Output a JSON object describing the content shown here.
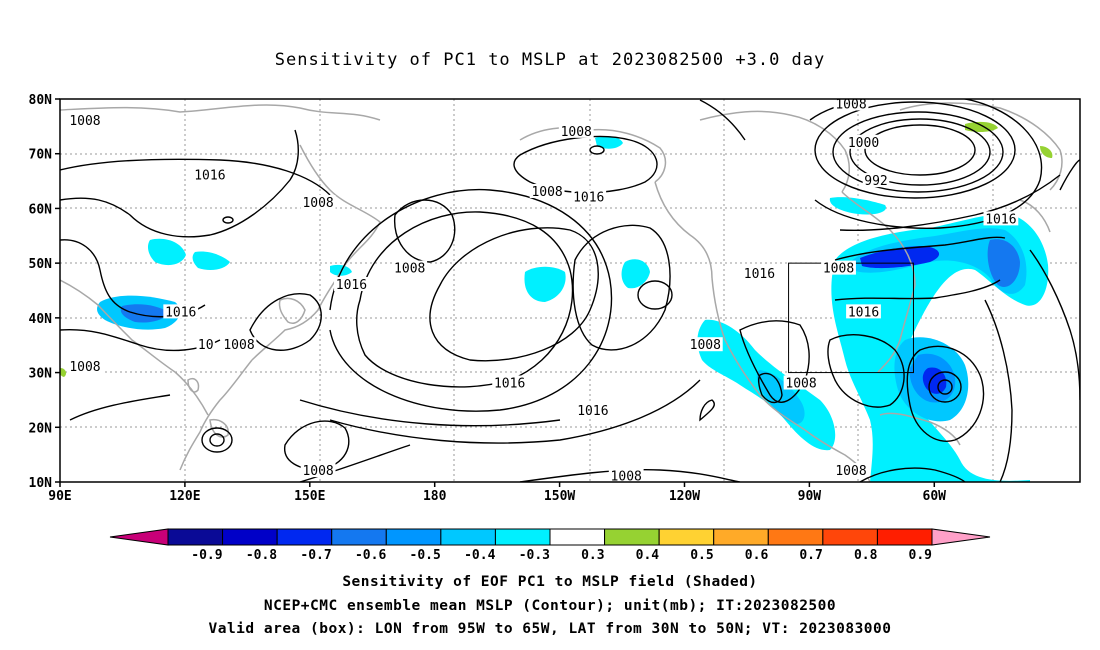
{
  "title": "Sensitivity of PC1 to MSLP at 2023082500 +3.0 day",
  "map": {
    "lon_range": [
      90,
      335
    ],
    "lat_range": [
      10,
      80
    ],
    "lat_ticks": [
      {
        "value": 80,
        "label": "80N"
      },
      {
        "value": 70,
        "label": "70N"
      },
      {
        "value": 60,
        "label": "60N"
      },
      {
        "value": 50,
        "label": "50N"
      },
      {
        "value": 40,
        "label": "40N"
      },
      {
        "value": 30,
        "label": "30N"
      },
      {
        "value": 20,
        "label": "20N"
      },
      {
        "value": 10,
        "label": "10N"
      }
    ],
    "lon_ticks": [
      {
        "value": 90,
        "label": "90E"
      },
      {
        "value": 120,
        "label": "120E"
      },
      {
        "value": 150,
        "label": "150E"
      },
      {
        "value": 180,
        "label": "180"
      },
      {
        "value": 210,
        "label": "150W"
      },
      {
        "value": 240,
        "label": "120W"
      },
      {
        "value": 270,
        "label": "90W"
      },
      {
        "value": 300,
        "label": "60W"
      }
    ],
    "valid_box": {
      "lon": [
        265,
        295
      ],
      "lat": [
        30,
        50
      ]
    },
    "contour_labels": [
      {
        "text": "1008",
        "lon": 96,
        "lat": 76
      },
      {
        "text": "1016",
        "lon": 126,
        "lat": 66
      },
      {
        "text": "1008",
        "lon": 152,
        "lat": 61
      },
      {
        "text": "1008",
        "lon": 214,
        "lat": 74
      },
      {
        "text": "1008",
        "lon": 207,
        "lat": 63
      },
      {
        "text": "1016",
        "lon": 217,
        "lat": 62
      },
      {
        "text": "1008",
        "lon": 174,
        "lat": 49
      },
      {
        "text": "1016",
        "lon": 160,
        "lat": 46
      },
      {
        "text": "1016",
        "lon": 119,
        "lat": 41
      },
      {
        "text": "1008",
        "lon": 133,
        "lat": 35
      },
      {
        "text": "10",
        "lon": 125,
        "lat": 35
      },
      {
        "text": "1008",
        "lon": 96,
        "lat": 31
      },
      {
        "text": "1016",
        "lon": 198,
        "lat": 28
      },
      {
        "text": "1016",
        "lon": 218,
        "lat": 23
      },
      {
        "text": "1008",
        "lon": 152,
        "lat": 12
      },
      {
        "text": "1008",
        "lon": 226,
        "lat": 11
      },
      {
        "text": "1008",
        "lon": 280,
        "lat": 79
      },
      {
        "text": "1000",
        "lon": 283,
        "lat": 72
      },
      {
        "text": "992",
        "lon": 286,
        "lat": 65
      },
      {
        "text": "1016",
        "lon": 316,
        "lat": 58
      },
      {
        "text": "1016",
        "lon": 258,
        "lat": 48
      },
      {
        "text": "1008",
        "lon": 277,
        "lat": 49
      },
      {
        "text": "1016",
        "lon": 283,
        "lat": 41
      },
      {
        "text": "1008",
        "lon": 245,
        "lat": 35
      },
      {
        "text": "1008",
        "lon": 268,
        "lat": 28
      },
      {
        "text": "1008",
        "lon": 280,
        "lat": 12
      }
    ]
  },
  "colorbar": {
    "colors": [
      "#c80078",
      "#0a0a96",
      "#0000c8",
      "#0028f0",
      "#1478f0",
      "#0096ff",
      "#00c8ff",
      "#00f0ff",
      "#ffffff",
      "#96d232",
      "#ffd232",
      "#ffaa28",
      "#ff7814",
      "#ff460a",
      "#ff1e00",
      "#ffa0c8"
    ],
    "labels": [
      "-0.9",
      "-0.8",
      "-0.7",
      "-0.6",
      "-0.5",
      "-0.4",
      "-0.3",
      "0.3",
      "0.4",
      "0.5",
      "0.6",
      "0.7",
      "0.8",
      "0.9"
    ]
  },
  "caption": {
    "line1": "Sensitivity of EOF PC1 to MSLP field (Shaded)",
    "line2": "NCEP+CMC ensemble mean MSLP (Contour); unit(mb); IT:2023082500",
    "line3": "Valid area (box): LON from 95W to 65W, LAT from 30N to 50N; VT: 2023083000"
  }
}
